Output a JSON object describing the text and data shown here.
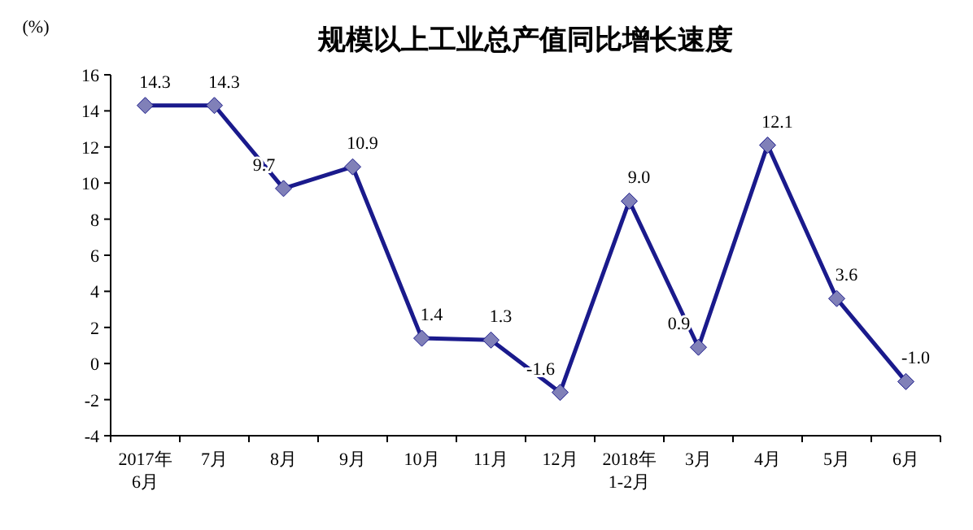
{
  "chart_data": {
    "type": "line",
    "title": "规模以上工业总产值同比增长速度",
    "ylabel": "(%)",
    "categories": [
      "2017年\n6月",
      "7月",
      "8月",
      "9月",
      "10月",
      "11月",
      "12月",
      "2018年\n1-2月",
      "3月",
      "4月",
      "5月",
      "6月"
    ],
    "series": [
      {
        "color": "#1a1a8c",
        "values": [
          14.3,
          14.3,
          9.7,
          10.9,
          1.4,
          1.3,
          -1.6,
          9.0,
          0.9,
          12.1,
          3.6,
          -1.0
        ],
        "value_labels": [
          "14.3",
          "14.3",
          "9.7",
          "10.9",
          "1.4",
          "1.3",
          "-1.6",
          "9.0",
          "0.9",
          "12.1",
          "3.6",
          "-1.0"
        ]
      }
    ],
    "ylim": [
      -4,
      16
    ],
    "yticks": [
      -4,
      -2,
      0,
      2,
      4,
      6,
      8,
      10,
      12,
      14,
      16
    ],
    "marker": "diamond",
    "line_style": "solid"
  }
}
